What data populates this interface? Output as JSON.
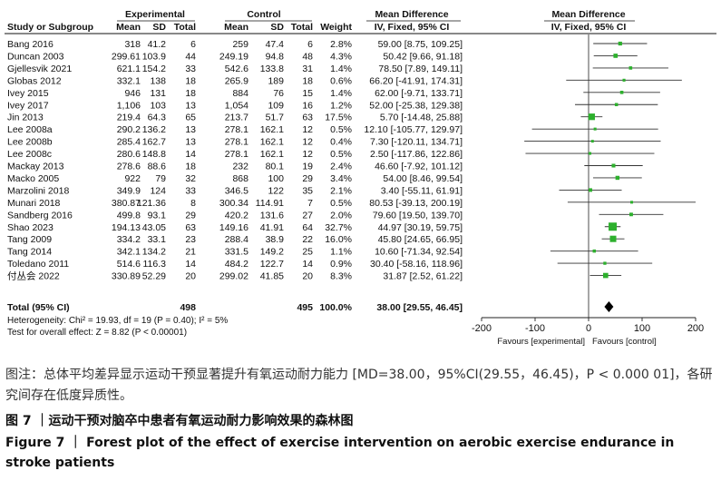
{
  "chart_data": {
    "type": "forest",
    "title": "",
    "headers": {
      "group_experimental": "Experimental",
      "group_control": "Control",
      "group_md": "Mean Difference",
      "group_plot": "Mean Difference",
      "study": "Study or Subgroup",
      "mean": "Mean",
      "sd": "SD",
      "total": "Total",
      "weight": "Weight",
      "method": "IV, Fixed, 95% CI",
      "plot_method": "IV, Fixed, 95% CI"
    },
    "studies": [
      {
        "name": "Bang 2016",
        "e_mean": "318",
        "e_sd": "41.2",
        "e_n": "6",
        "c_mean": "259",
        "c_sd": "47.4",
        "c_n": "6",
        "weight": "2.8%",
        "ci_text": "59.00 [8.75, 109.25]",
        "md": 59.0,
        "lo": 8.75,
        "hi": 109.25
      },
      {
        "name": "Duncan 2003",
        "e_mean": "299.61",
        "e_sd": "103.9",
        "e_n": "44",
        "c_mean": "249.19",
        "c_sd": "94.8",
        "c_n": "48",
        "weight": "4.3%",
        "ci_text": "50.42 [9.66, 91.18]",
        "md": 50.42,
        "lo": 9.66,
        "hi": 91.18
      },
      {
        "name": "Gjellesvik 2021",
        "e_mean": "621.1",
        "e_sd": "154.2",
        "e_n": "33",
        "c_mean": "542.6",
        "c_sd": "133.8",
        "c_n": "31",
        "weight": "1.4%",
        "ci_text": "78.50 [7.89, 149.11]",
        "md": 78.5,
        "lo": 7.89,
        "hi": 149.11
      },
      {
        "name": "Globas 2012",
        "e_mean": "332.1",
        "e_sd": "138",
        "e_n": "18",
        "c_mean": "265.9",
        "c_sd": "189",
        "c_n": "18",
        "weight": "0.6%",
        "ci_text": "66.20 [-41.91, 174.31]",
        "md": 66.2,
        "lo": -41.91,
        "hi": 174.31
      },
      {
        "name": "Ivey 2015",
        "e_mean": "946",
        "e_sd": "131",
        "e_n": "18",
        "c_mean": "884",
        "c_sd": "76",
        "c_n": "15",
        "weight": "1.4%",
        "ci_text": "62.00 [-9.71, 133.71]",
        "md": 62.0,
        "lo": -9.71,
        "hi": 133.71
      },
      {
        "name": "Ivey 2017",
        "e_mean": "1,106",
        "e_sd": "103",
        "e_n": "13",
        "c_mean": "1,054",
        "c_sd": "109",
        "c_n": "16",
        "weight": "1.2%",
        "ci_text": "52.00 [-25.38, 129.38]",
        "md": 52.0,
        "lo": -25.38,
        "hi": 129.38
      },
      {
        "name": "Jin 2013",
        "e_mean": "219.4",
        "e_sd": "64.3",
        "e_n": "65",
        "c_mean": "213.7",
        "c_sd": "51.7",
        "c_n": "63",
        "weight": "17.5%",
        "ci_text": "5.70 [-14.48, 25.88]",
        "md": 5.7,
        "lo": -14.48,
        "hi": 25.88
      },
      {
        "name": "Lee 2008a",
        "e_mean": "290.2",
        "e_sd": "136.2",
        "e_n": "13",
        "c_mean": "278.1",
        "c_sd": "162.1",
        "c_n": "12",
        "weight": "0.5%",
        "ci_text": "12.10 [-105.77, 129.97]",
        "md": 12.1,
        "lo": -105.77,
        "hi": 129.97
      },
      {
        "name": "Lee 2008b",
        "e_mean": "285.4",
        "e_sd": "162.7",
        "e_n": "13",
        "c_mean": "278.1",
        "c_sd": "162.1",
        "c_n": "12",
        "weight": "0.4%",
        "ci_text": "7.30 [-120.11, 134.71]",
        "md": 7.3,
        "lo": -120.11,
        "hi": 134.71
      },
      {
        "name": "Lee 2008c",
        "e_mean": "280.6",
        "e_sd": "148.8",
        "e_n": "14",
        "c_mean": "278.1",
        "c_sd": "162.1",
        "c_n": "12",
        "weight": "0.5%",
        "ci_text": "2.50 [-117.86, 122.86]",
        "md": 2.5,
        "lo": -117.86,
        "hi": 122.86
      },
      {
        "name": "Mackay 2013",
        "e_mean": "278.6",
        "e_sd": "88.6",
        "e_n": "18",
        "c_mean": "232",
        "c_sd": "80.1",
        "c_n": "19",
        "weight": "2.4%",
        "ci_text": "46.60 [-7.92, 101.12]",
        "md": 46.6,
        "lo": -7.92,
        "hi": 101.12
      },
      {
        "name": "Macko 2005",
        "e_mean": "922",
        "e_sd": "79",
        "e_n": "32",
        "c_mean": "868",
        "c_sd": "100",
        "c_n": "29",
        "weight": "3.4%",
        "ci_text": "54.00 [8.46, 99.54]",
        "md": 54.0,
        "lo": 8.46,
        "hi": 99.54
      },
      {
        "name": "Marzolini 2018",
        "e_mean": "349.9",
        "e_sd": "124",
        "e_n": "33",
        "c_mean": "346.5",
        "c_sd": "122",
        "c_n": "35",
        "weight": "2.1%",
        "ci_text": "3.40 [-55.11, 61.91]",
        "md": 3.4,
        "lo": -55.11,
        "hi": 61.91
      },
      {
        "name": "Munari 2018",
        "e_mean": "380.87",
        "e_sd": "121.36",
        "e_n": "8",
        "c_mean": "300.34",
        "c_sd": "114.91",
        "c_n": "7",
        "weight": "0.5%",
        "ci_text": "80.53 [-39.13, 200.19]",
        "md": 80.53,
        "lo": -39.13,
        "hi": 200.19
      },
      {
        "name": "Sandberg 2016",
        "e_mean": "499.8",
        "e_sd": "93.1",
        "e_n": "29",
        "c_mean": "420.2",
        "c_sd": "131.6",
        "c_n": "27",
        "weight": "2.0%",
        "ci_text": "79.60 [19.50, 139.70]",
        "md": 79.6,
        "lo": 19.5,
        "hi": 139.7
      },
      {
        "name": "Shao 2023",
        "e_mean": "194.13",
        "e_sd": "43.05",
        "e_n": "63",
        "c_mean": "149.16",
        "c_sd": "41.91",
        "c_n": "64",
        "weight": "32.7%",
        "ci_text": "44.97 [30.19, 59.75]",
        "md": 44.97,
        "lo": 30.19,
        "hi": 59.75
      },
      {
        "name": "Tang 2009",
        "e_mean": "334.2",
        "e_sd": "33.1",
        "e_n": "23",
        "c_mean": "288.4",
        "c_sd": "38.9",
        "c_n": "22",
        "weight": "16.0%",
        "ci_text": "45.80 [24.65, 66.95]",
        "md": 45.8,
        "lo": 24.65,
        "hi": 66.95
      },
      {
        "name": "Tang 2014",
        "e_mean": "342.1",
        "e_sd": "134.2",
        "e_n": "21",
        "c_mean": "331.5",
        "c_sd": "149.2",
        "c_n": "25",
        "weight": "1.1%",
        "ci_text": "10.60 [-71.34, 92.54]",
        "md": 10.6,
        "lo": -71.34,
        "hi": 92.54
      },
      {
        "name": "Toledano 2011",
        "e_mean": "514.6",
        "e_sd": "116.3",
        "e_n": "14",
        "c_mean": "484.2",
        "c_sd": "122.7",
        "c_n": "14",
        "weight": "0.9%",
        "ci_text": "30.40 [-58.16, 118.96]",
        "md": 30.4,
        "lo": -58.16,
        "hi": 118.96
      },
      {
        "name": "付丛会 2022",
        "e_mean": "330.89",
        "e_sd": "52.29",
        "e_n": "20",
        "c_mean": "299.02",
        "c_sd": "41.85",
        "c_n": "20",
        "weight": "8.3%",
        "ci_text": "31.87 [2.52, 61.22]",
        "md": 31.87,
        "lo": 2.52,
        "hi": 61.22
      }
    ],
    "total": {
      "name": "Total (95% CI)",
      "e_n": "498",
      "c_n": "495",
      "weight": "100.0%",
      "ci_text": "38.00 [29.55, 46.45]",
      "md": 38.0,
      "lo": 29.55,
      "hi": 46.45
    },
    "heterogeneity": "Heterogeneity: Chi² = 19.93, df = 19 (P = 0.40); I² = 5%",
    "overall_effect": "Test for overall effect: Z = 8.82 (P < 0.00001)",
    "x_axis": {
      "min": -200,
      "max": 200,
      "ticks": [
        "-200",
        "-100",
        "0",
        "100",
        "200"
      ],
      "tick_values": [
        -200,
        -100,
        0,
        100,
        200
      ]
    },
    "favours_left": "Favours [experimental]",
    "favours_right": "Favours [control]",
    "colors": {
      "square": "#2db02d",
      "ci_line": "#333333",
      "diamond": "#000000"
    }
  },
  "caption": {
    "note": "图注：总体平均差异显示运动干预显著提升有氧运动耐力能力 [MD=38.00，95%CI(29.55，46.45)，P < 0.000 01]，各研究间存在低度异质性。",
    "zh": "图 7 ｜运动干预对脑卒中患者有氧运动耐力影响效果的森林图",
    "en": "Figure 7 ｜ Forest plot of the effect of exercise intervention on aerobic exercise endurance in stroke patients"
  }
}
